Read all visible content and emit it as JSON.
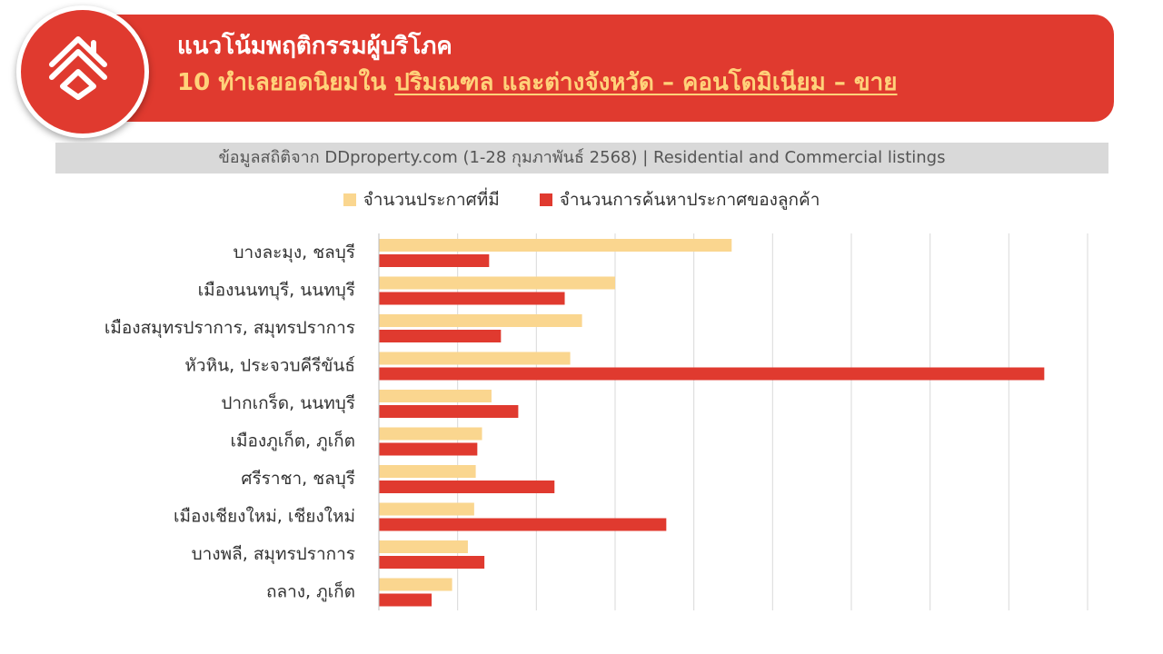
{
  "header": {
    "title_line1": "แนวโน้มพฤติกรรมผู้บริโภค",
    "title_line2_prefix": "10 ทำเลยอดนิยมใน ",
    "title_line2_underlined": "ปริมณฑล และต่างจังหวัด – คอนโดมิเนียม – ขาย",
    "logo_icon": "house-logo-icon"
  },
  "source_text": "ข้อมูลสถิติจาก DDproperty.com (1-28 กุมภาพันธ์ 2568) | Residential and Commercial listings",
  "colors": {
    "banner": "#e03a2f",
    "listings": "#fad68f",
    "searches": "#e03a2f",
    "title_accent": "#ffd27a"
  },
  "chart_data": {
    "type": "bar",
    "orientation": "horizontal",
    "categories": [
      "บางละมุง, ชลบุรี",
      "เมืองนนทบุรี, นนทบุรี",
      "เมืองสมุทรปราการ, สมุทรปราการ",
      "หัวหิน, ประจวบคีรีขันธ์",
      "ปากเกร็ด, นนทบุรี",
      "เมืองภูเก็ต, ภูเก็ต",
      "ศรีราชา, ชลบุรี",
      "เมืองเชียงใหม่, เชียงใหม่",
      "บางพลี, สมุทรปราการ",
      "ถลาง, ภูเก็ต"
    ],
    "series": [
      {
        "name": "จำนวนประกาศที่มี",
        "values": [
          44.8,
          30.0,
          25.8,
          24.3,
          14.3,
          13.1,
          12.3,
          12.1,
          11.3,
          9.3
        ]
      },
      {
        "name": "จำนวนการค้นหาประกาศของลูกค้า",
        "values": [
          14.0,
          23.6,
          15.5,
          84.5,
          17.7,
          12.5,
          22.3,
          36.5,
          13.4,
          6.7
        ]
      }
    ],
    "xlim": [
      0,
      90
    ],
    "gridlines": 9,
    "grid": true,
    "x_tick_labels_shown": false,
    "legend_position": "top"
  }
}
